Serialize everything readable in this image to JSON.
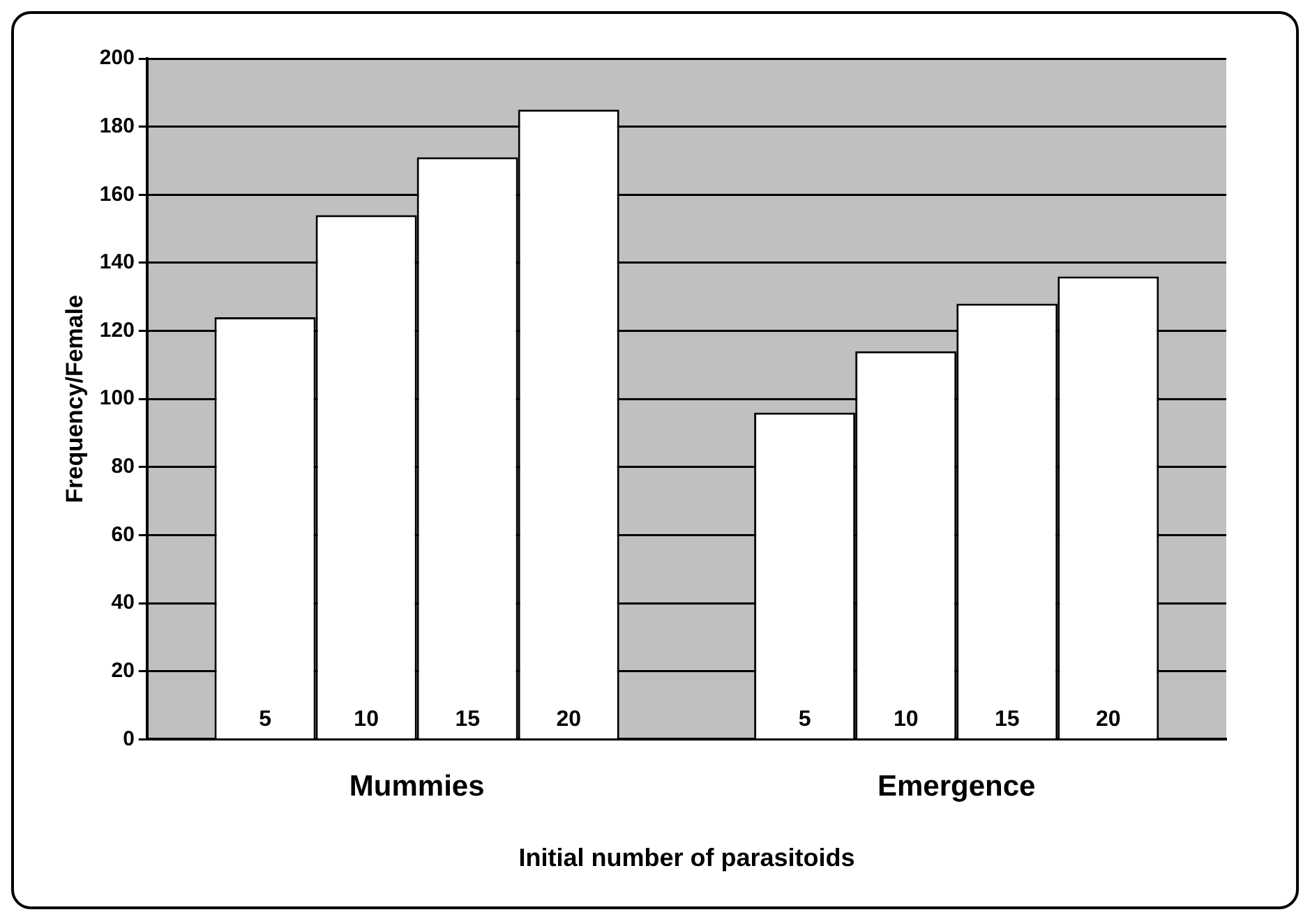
{
  "chart_data": {
    "type": "bar",
    "xlabel": "Initial number of parasitoids",
    "ylabel": "Frequency/Female",
    "categories": [
      "Mummies",
      "Emergence"
    ],
    "series": [
      {
        "name": "5",
        "color": "#ffffff",
        "values": [
          124,
          96
        ]
      },
      {
        "name": "10",
        "color": "#ffffff",
        "values": [
          154,
          114
        ]
      },
      {
        "name": "15",
        "color": "#ffffff",
        "values": [
          171,
          128
        ]
      },
      {
        "name": "20",
        "color": "#ffffff",
        "values": [
          185,
          136
        ]
      }
    ],
    "ylim": [
      0,
      200
    ],
    "yticks": [
      0,
      20,
      40,
      60,
      80,
      100,
      120,
      140,
      160,
      180,
      200
    ],
    "grid": "y",
    "legend": false
  }
}
